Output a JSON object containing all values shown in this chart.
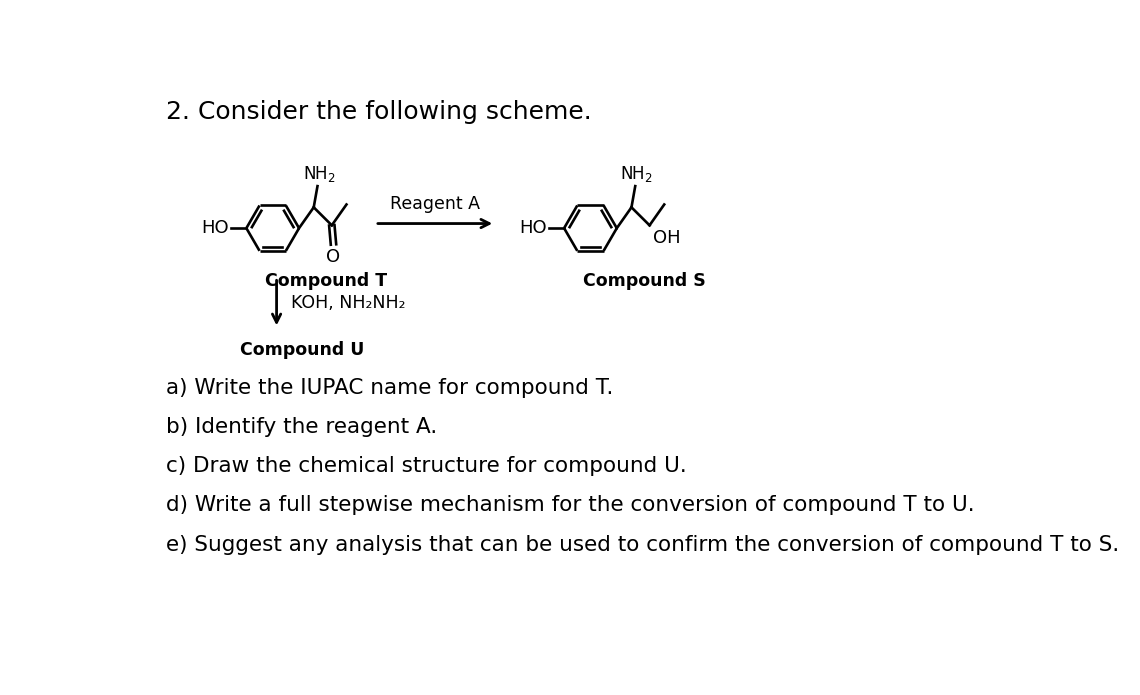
{
  "title": "2. Consider the following scheme.",
  "title_fontsize": 18,
  "background_color": "#ffffff",
  "text_color": "#000000",
  "questions": [
    "a) Write the IUPAC name for compound T.",
    "b) Identify the reagent A.",
    "c) Draw the chemical structure for compound U.",
    "d) Write a full stepwise mechanism for the conversion of compound T to U.",
    "e) Suggest any analysis that can be used to confirm the conversion of compound T to S."
  ],
  "questions_fontsize": 15.5,
  "compound_T_label": "Compound T",
  "compound_S_label": "Compound S",
  "compound_U_label": "Compound U",
  "reagent_label": "Reagent A",
  "koh_label": "KOH, NH₂NH₂"
}
